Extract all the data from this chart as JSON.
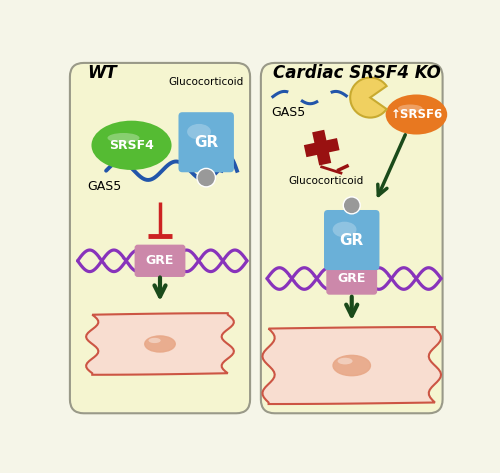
{
  "background_color": "#f5f5e8",
  "panel_bg": "#f5f5d0",
  "panel_border": "#999988",
  "wt_title": "WT",
  "ko_title": "Cardiac SRSF4 KO",
  "srsf4_color": "#55bb33",
  "srsf6_color": "#e87820",
  "gr_color": "#6ab0d8",
  "gre_color": "#cc88aa",
  "gas5_color": "#2255aa",
  "dna_color": "#8833bb",
  "cell_fill": "#f8ddd0",
  "cell_border": "#cc5544",
  "nucleus_fill": "#e8a888",
  "inhibit_color": "#cc2222",
  "activate_color": "#1a4a1a",
  "cross_color": "#991111",
  "ball_color": "#999999",
  "glucocorticoid_label": "Glucocorticoid",
  "gas5_label": "GAS5",
  "srsf4_label": "SRSF4",
  "srsf6_label": "↑SRSF6",
  "gr_label": "GR",
  "gre_label": "GRE"
}
